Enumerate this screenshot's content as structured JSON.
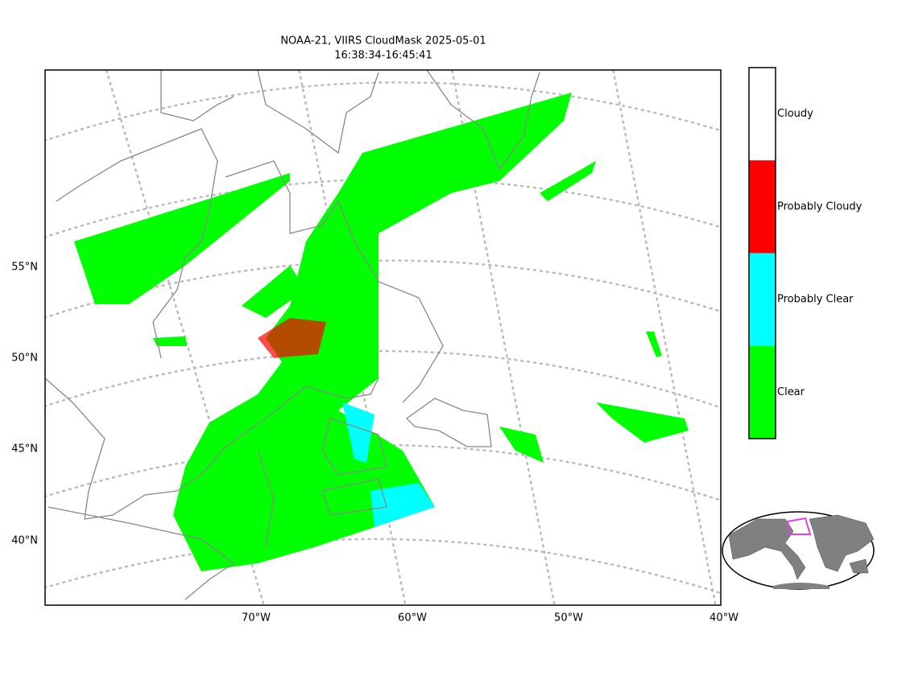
{
  "title": [
    "NOAA-21, VIIRS CloudMask 2025-05-01",
    "16:38:34-16:45:41"
  ],
  "lat_labels": [
    "55°N",
    "50°N",
    "45°N",
    "40°N"
  ],
  "lon_labels": [
    "70°W",
    "60°W",
    "50°W",
    "40°W"
  ],
  "legend": [
    {
      "name": "Cloudy",
      "color": "#ffffff"
    },
    {
      "name": "Probably Cloudy",
      "color": "#ff0000"
    },
    {
      "name": "Probably Clear",
      "color": "#00ffff"
    },
    {
      "name": "Clear",
      "color": "#00ff00"
    }
  ]
}
